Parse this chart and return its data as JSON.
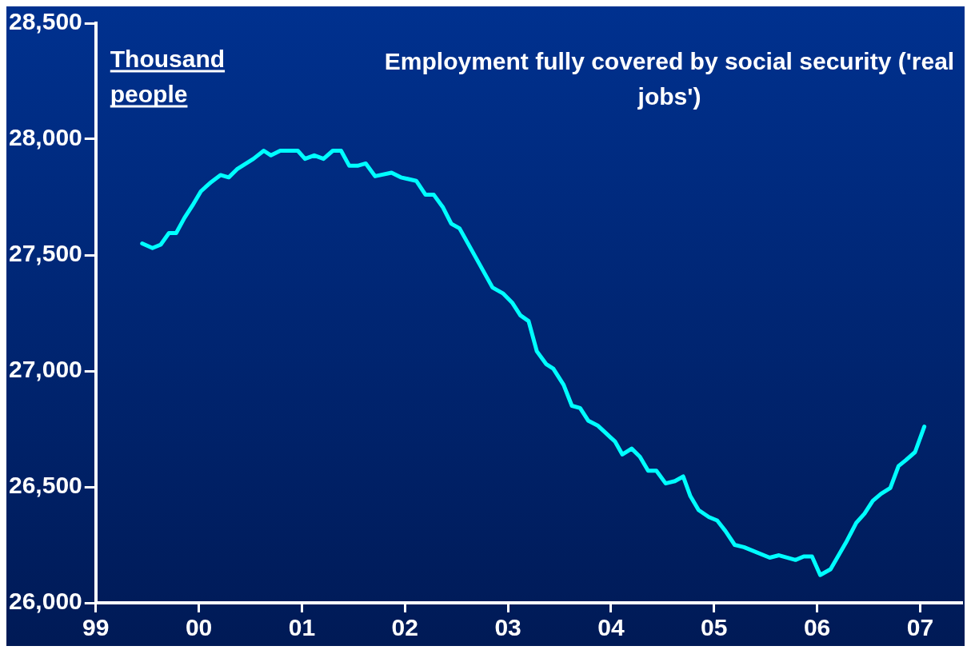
{
  "chart_data": {
    "type": "line",
    "title": "Employment fully covered by social security ('real jobs')",
    "ylabel": "Thousand people",
    "xlim": [
      1999,
      2007.4
    ],
    "xticks": [
      {
        "value": 1999,
        "label": "99"
      },
      {
        "value": 2000,
        "label": "00"
      },
      {
        "value": 2001,
        "label": "01"
      },
      {
        "value": 2002,
        "label": "02"
      },
      {
        "value": 2003,
        "label": "03"
      },
      {
        "value": 2004,
        "label": "04"
      },
      {
        "value": 2005,
        "label": "05"
      },
      {
        "value": 2006,
        "label": "06"
      },
      {
        "value": 2007,
        "label": "07"
      }
    ],
    "ylim": [
      26000,
      28500
    ],
    "yticks": [
      {
        "value": 26000,
        "label": "26,000"
      },
      {
        "value": 26500,
        "label": "26,500"
      },
      {
        "value": 27000,
        "label": "27,000"
      },
      {
        "value": 27500,
        "label": "27,500"
      },
      {
        "value": 28000,
        "label": "28,000"
      },
      {
        "value": 28500,
        "label": "28,500"
      }
    ],
    "grid": false,
    "legend": false,
    "marker": "none",
    "line_style": "solid",
    "series": [
      {
        "color": "#00ffff",
        "x": [
          1999.45,
          1999.55,
          1999.63,
          1999.71,
          1999.78,
          1999.86,
          1999.94,
          2000.02,
          2000.12,
          2000.21,
          2000.29,
          2000.37,
          2000.53,
          2000.63,
          2000.7,
          2000.79,
          2000.96,
          2001.03,
          2001.12,
          2001.21,
          2001.3,
          2001.38,
          2001.46,
          2001.54,
          2001.62,
          2001.71,
          2001.87,
          2001.96,
          2002.11,
          2002.2,
          2002.28,
          2002.37,
          2002.45,
          2002.53,
          2002.85,
          2002.95,
          2003.04,
          2003.12,
          2003.2,
          2003.28,
          2003.37,
          2003.44,
          2003.54,
          2003.62,
          2003.7,
          2003.78,
          2003.87,
          2004.04,
          2004.11,
          2004.2,
          2004.28,
          2004.36,
          2004.44,
          2004.53,
          2004.62,
          2004.7,
          2004.77,
          2004.85,
          2004.95,
          2005.03,
          2005.11,
          2005.2,
          2005.29,
          2005.54,
          2005.63,
          2005.79,
          2005.87,
          2005.95,
          2006.03,
          2006.13,
          2006.28,
          2006.38,
          2006.46,
          2006.54,
          2006.62,
          2006.71,
          2006.79,
          2006.86,
          2006.95,
          2007.04
        ],
        "values": [
          27550,
          27530,
          27545,
          27595,
          27595,
          27660,
          27715,
          27775,
          27815,
          27845,
          27835,
          27870,
          27915,
          27950,
          27930,
          27950,
          27950,
          27915,
          27930,
          27915,
          27950,
          27950,
          27885,
          27885,
          27895,
          27840,
          27855,
          27835,
          27820,
          27760,
          27760,
          27705,
          27635,
          27615,
          27360,
          27335,
          27295,
          27240,
          27215,
          27085,
          27030,
          27010,
          26940,
          26850,
          26840,
          26785,
          26765,
          26695,
          26640,
          26665,
          26630,
          26570,
          26570,
          26515,
          26525,
          26545,
          26460,
          26400,
          26370,
          26355,
          26310,
          26250,
          26240,
          26195,
          26205,
          26185,
          26200,
          26200,
          26120,
          26145,
          26260,
          26345,
          26385,
          26440,
          26470,
          26495,
          26590,
          26615,
          26650,
          26760
        ]
      }
    ]
  }
}
